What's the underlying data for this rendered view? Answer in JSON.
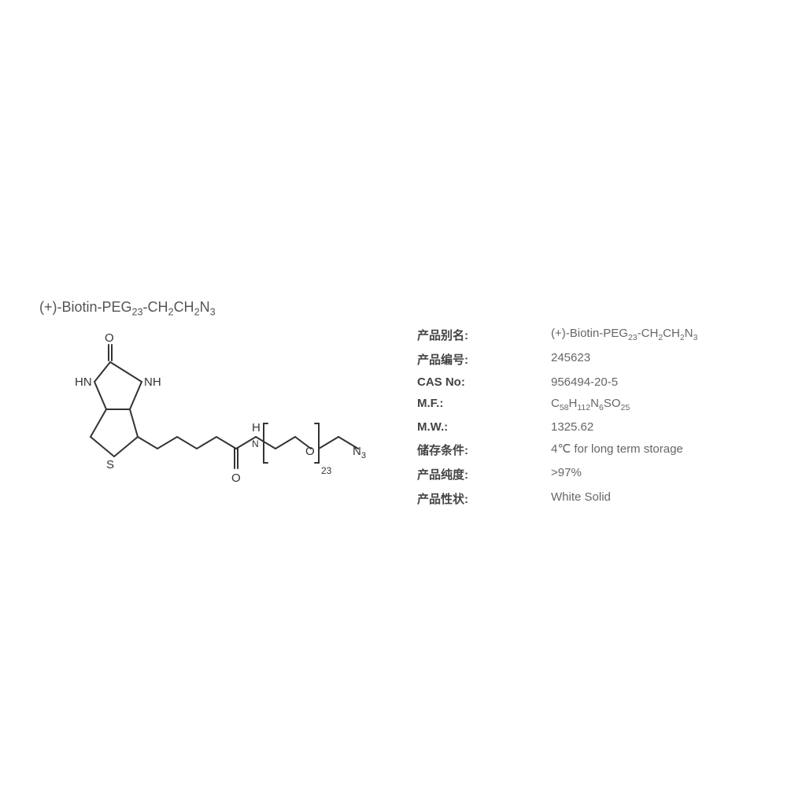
{
  "title_html": "(+)-Biotin-PEG<sub>23</sub>-CH<sub>2</sub>CH<sub>2</sub>N<sub>3</sub>",
  "properties": [
    {
      "label": "产品别名:",
      "value_html": "(+)-Biotin-PEG<sub>23</sub>-CH<sub>2</sub>CH<sub>2</sub>N<sub>3</sub>"
    },
    {
      "label": "产品编号:",
      "value_html": "245623"
    },
    {
      "label": "CAS No:",
      "value_html": "956494-20-5"
    },
    {
      "label": "M.F.:",
      "value_html": "C<sub>58</sub>H<sub>112</sub>N<sub>6</sub>SO<sub>25</sub>"
    },
    {
      "label": "M.W.:",
      "value_html": "1325.62"
    },
    {
      "label": "储存条件:",
      "value_html": "4℃ for long term storage"
    },
    {
      "label": "产品纯度:",
      "value_html": ">97%"
    },
    {
      "label": "产品性状:",
      "value_html": "White Solid"
    }
  ],
  "structure": {
    "atom_label_color": "#333333",
    "bond_color": "#333333",
    "bond_width": 2,
    "font_size": 15
  }
}
